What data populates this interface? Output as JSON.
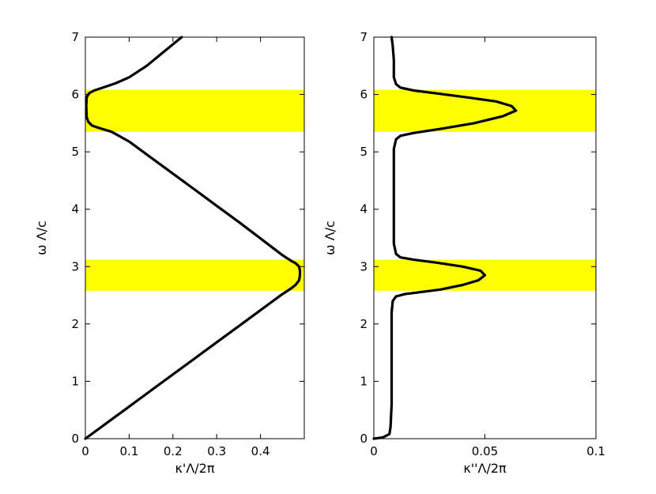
{
  "colors": {
    "band": "#ffff00",
    "curve": "#000000",
    "axes": "#000000",
    "background": "#ffffff"
  },
  "chart_data": [
    {
      "type": "line",
      "title": "",
      "xlabel": "κ'Λ/2π",
      "ylabel": "ω Λ/c",
      "xlim": [
        0,
        0.5
      ],
      "ylim": [
        0,
        7
      ],
      "grid": false,
      "x_ticks": [
        "0",
        "0.1",
        "0.2",
        "0.3",
        "0.4"
      ],
      "y_ticks": [
        "0",
        "1",
        "2",
        "3",
        "4",
        "5",
        "6",
        "7"
      ],
      "shaded_bands_y": [
        [
          2.58,
          3.12
        ],
        [
          5.35,
          6.08
        ]
      ],
      "series": [
        {
          "x": [
            0.0,
            0.05,
            0.1,
            0.15,
            0.2,
            0.25,
            0.3,
            0.35,
            0.4,
            0.45,
            0.47,
            0.48,
            0.488,
            0.49,
            0.49,
            0.488,
            0.48,
            0.47,
            0.45,
            0.4,
            0.35,
            0.3,
            0.25,
            0.2,
            0.15,
            0.1,
            0.06,
            0.03,
            0.015,
            0.007,
            0.003,
            0.002,
            0.003,
            0.008,
            0.02,
            0.04,
            0.07,
            0.1,
            0.14,
            0.18,
            0.22
          ],
          "y": [
            0.0,
            0.28,
            0.56,
            0.84,
            1.12,
            1.4,
            1.68,
            1.96,
            2.24,
            2.52,
            2.62,
            2.68,
            2.76,
            2.85,
            2.93,
            3.0,
            3.06,
            3.1,
            3.2,
            3.49,
            3.78,
            4.06,
            4.34,
            4.62,
            4.9,
            5.18,
            5.35,
            5.42,
            5.46,
            5.52,
            5.6,
            5.8,
            5.95,
            6.02,
            6.07,
            6.12,
            6.2,
            6.3,
            6.5,
            6.75,
            7.0
          ]
        }
      ]
    },
    {
      "type": "line",
      "title": "",
      "xlabel": "κ''Λ/2π",
      "ylabel": "ω Λ/c",
      "xlim": [
        0,
        0.1
      ],
      "ylim": [
        0,
        7
      ],
      "grid": false,
      "x_ticks": [
        "0",
        "0.05",
        "0.1"
      ],
      "y_ticks": [
        "0",
        "1",
        "2",
        "3",
        "4",
        "5",
        "6",
        "7"
      ],
      "shaded_bands_y": [
        [
          2.58,
          3.12
        ],
        [
          5.35,
          6.08
        ]
      ],
      "series": [
        {
          "x": [
            0.0,
            0.004,
            0.007,
            0.0075,
            0.008,
            0.008,
            0.008,
            0.0085,
            0.01,
            0.014,
            0.02,
            0.03,
            0.04,
            0.047,
            0.05,
            0.048,
            0.04,
            0.028,
            0.018,
            0.012,
            0.01,
            0.009,
            0.009,
            0.009,
            0.009,
            0.01,
            0.012,
            0.018,
            0.03,
            0.045,
            0.058,
            0.064,
            0.062,
            0.055,
            0.042,
            0.028,
            0.018,
            0.012,
            0.01,
            0.009,
            0.009,
            0.0085,
            0.008
          ],
          "y": [
            0.0,
            0.02,
            0.08,
            0.2,
            0.6,
            1.5,
            2.2,
            2.4,
            2.48,
            2.52,
            2.55,
            2.6,
            2.68,
            2.76,
            2.85,
            2.93,
            3.0,
            3.07,
            3.12,
            3.16,
            3.22,
            3.4,
            4.0,
            4.6,
            5.05,
            5.22,
            5.28,
            5.33,
            5.4,
            5.5,
            5.62,
            5.72,
            5.8,
            5.88,
            5.95,
            6.02,
            6.07,
            6.12,
            6.18,
            6.3,
            6.6,
            6.85,
            7.0
          ]
        }
      ]
    }
  ]
}
